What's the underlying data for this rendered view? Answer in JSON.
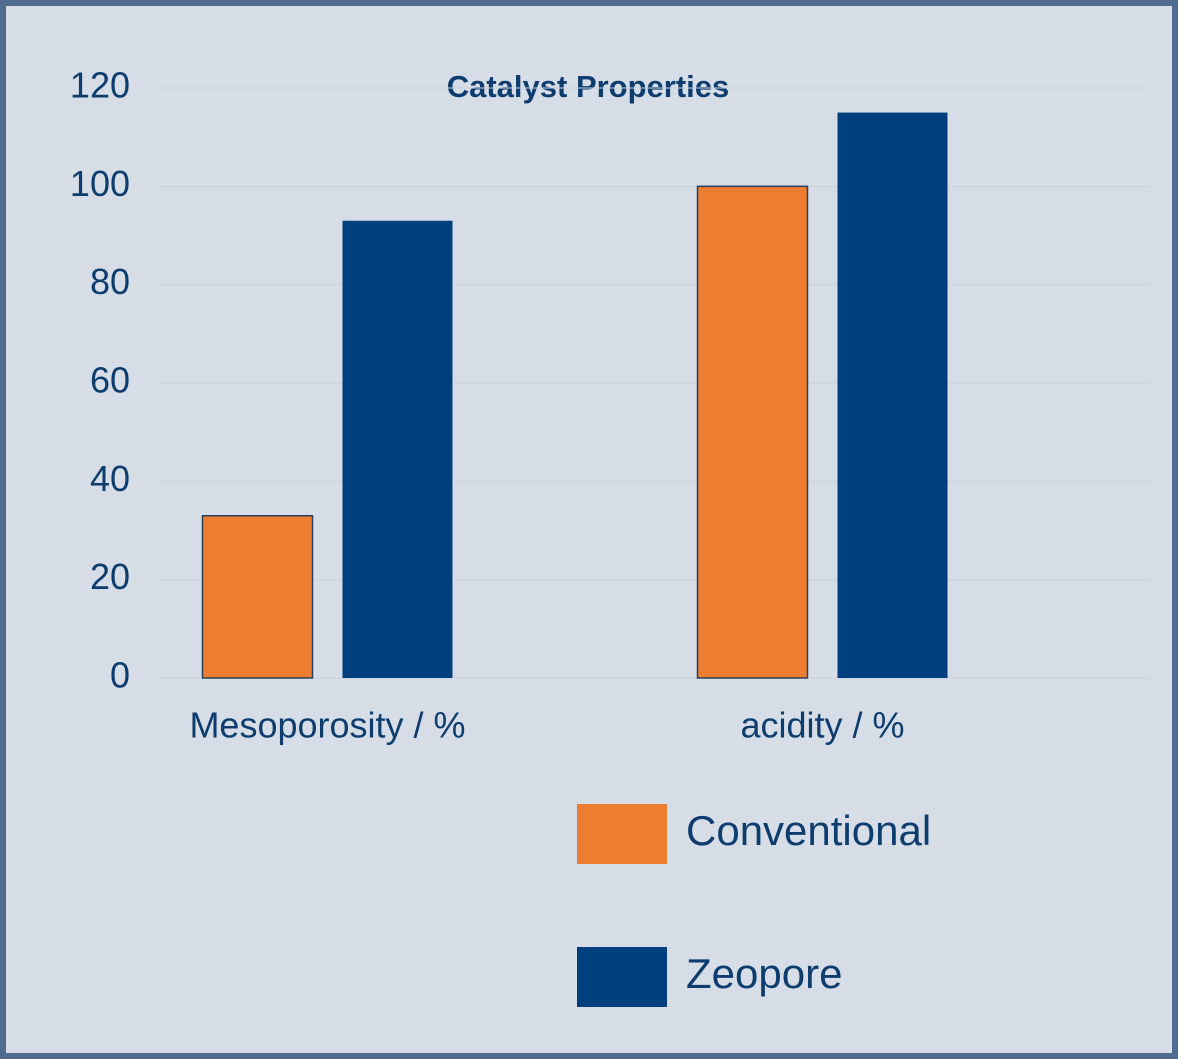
{
  "chart_data": {
    "type": "bar",
    "title": "Catalyst Properties",
    "categories": [
      "Mesoporosity / %",
      "acidity / %"
    ],
    "series": [
      {
        "name": "Conventional",
        "color": "#ed7d31",
        "values": [
          33,
          100
        ]
      },
      {
        "name": "Zeopore",
        "color": "#003f7d",
        "values": [
          93,
          115
        ]
      }
    ],
    "ylim": [
      0,
      120
    ],
    "yticks": [
      0,
      20,
      40,
      60,
      80,
      100,
      120
    ],
    "grid": true,
    "legend": "bottom"
  }
}
